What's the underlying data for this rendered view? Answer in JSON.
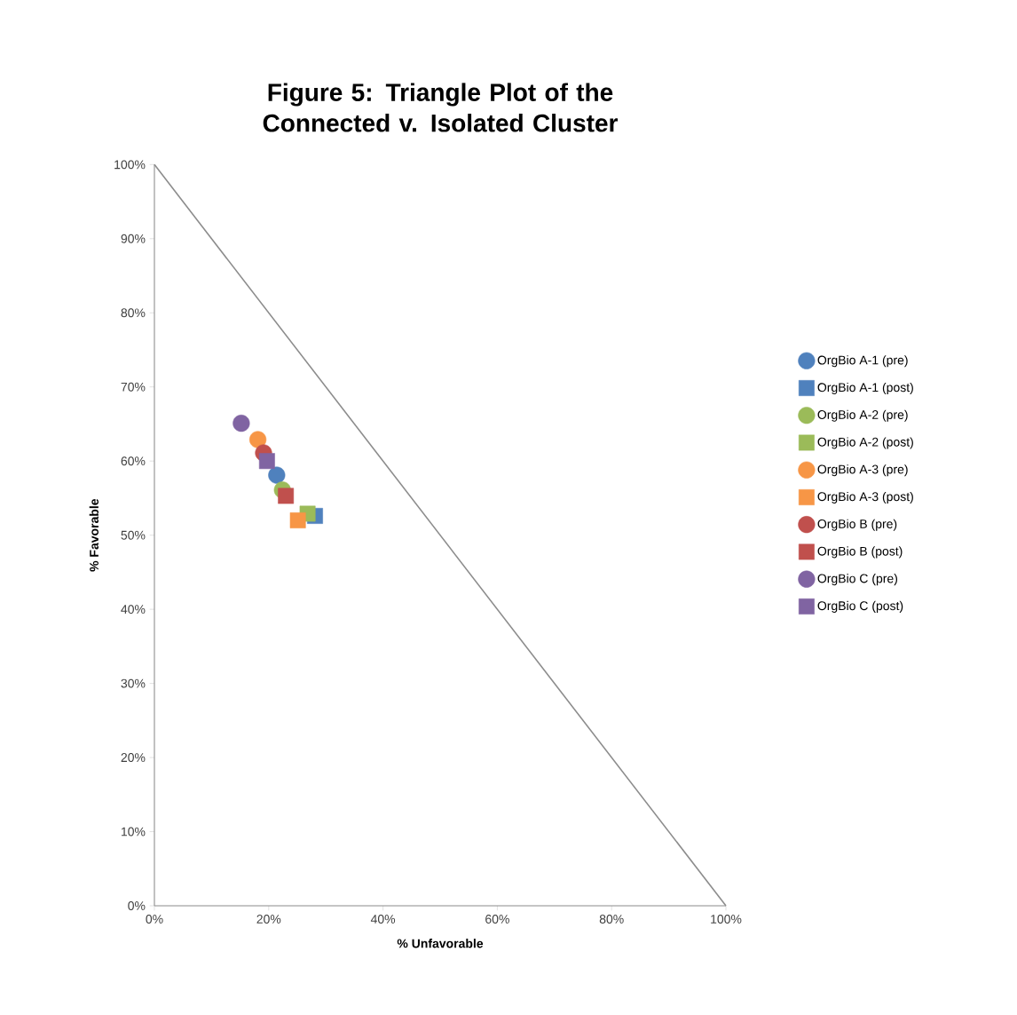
{
  "chart_data": {
    "type": "scatter",
    "title": "Figure 5: Triangle Plot of the Connected v. Isolated Cluster",
    "xlabel": "% Unfavorable",
    "ylabel": "% Favorable",
    "xlim": [
      0,
      100
    ],
    "ylim": [
      0,
      100
    ],
    "xticks": [
      {
        "value": 0,
        "label": "0%"
      },
      {
        "value": 20,
        "label": "20%"
      },
      {
        "value": 40,
        "label": "40%"
      },
      {
        "value": 60,
        "label": "60%"
      },
      {
        "value": 80,
        "label": "80%"
      },
      {
        "value": 100,
        "label": "100%"
      }
    ],
    "yticks": [
      {
        "value": 0,
        "label": "0%"
      },
      {
        "value": 10,
        "label": "10%"
      },
      {
        "value": 20,
        "label": "20%"
      },
      {
        "value": 30,
        "label": "30%"
      },
      {
        "value": 40,
        "label": "40%"
      },
      {
        "value": 50,
        "label": "50%"
      },
      {
        "value": 60,
        "label": "60%"
      },
      {
        "value": 70,
        "label": "70%"
      },
      {
        "value": 80,
        "label": "80%"
      },
      {
        "value": 90,
        "label": "90%"
      },
      {
        "value": 100,
        "label": "100%"
      }
    ],
    "legend": "right",
    "series": [
      {
        "type": "line",
        "color": "#8c8c8c",
        "x": [
          0,
          100
        ],
        "values": [
          100,
          0
        ],
        "marker": "none"
      },
      {
        "name": "OrgBio A-1 (pre)",
        "color": "#4f81bd",
        "marker": "circle",
        "x": [
          21.4
        ],
        "values": [
          58.1
        ]
      },
      {
        "name": "OrgBio A-1 (post)",
        "color": "#4f81bd",
        "marker": "square",
        "x": [
          28.1
        ],
        "values": [
          52.6
        ]
      },
      {
        "name": "OrgBio A-2 (pre)",
        "color": "#9bbb59",
        "marker": "circle",
        "x": [
          22.4
        ],
        "values": [
          56.1
        ]
      },
      {
        "name": "OrgBio A-2 (post)",
        "color": "#9bbb59",
        "marker": "square",
        "x": [
          26.8
        ],
        "values": [
          52.9
        ]
      },
      {
        "name": "OrgBio A-3 (pre)",
        "color": "#f79646",
        "marker": "circle",
        "x": [
          18.1
        ],
        "values": [
          62.9
        ]
      },
      {
        "name": "OrgBio A-3 (post)",
        "color": "#f79646",
        "marker": "square",
        "x": [
          25.1
        ],
        "values": [
          52.0
        ]
      },
      {
        "name": "OrgBio B (pre)",
        "color": "#c0504d",
        "marker": "circle",
        "x": [
          19.1
        ],
        "values": [
          61.1
        ]
      },
      {
        "name": "OrgBio B (post)",
        "color": "#c0504d",
        "marker": "square",
        "x": [
          23.0
        ],
        "values": [
          55.3
        ]
      },
      {
        "name": "OrgBio C (pre)",
        "color": "#8064a2",
        "marker": "circle",
        "x": [
          15.2
        ],
        "values": [
          65.1
        ]
      },
      {
        "name": "OrgBio C (post)",
        "color": "#8064a2",
        "marker": "square",
        "x": [
          19.7
        ],
        "values": [
          60.0
        ]
      }
    ]
  }
}
